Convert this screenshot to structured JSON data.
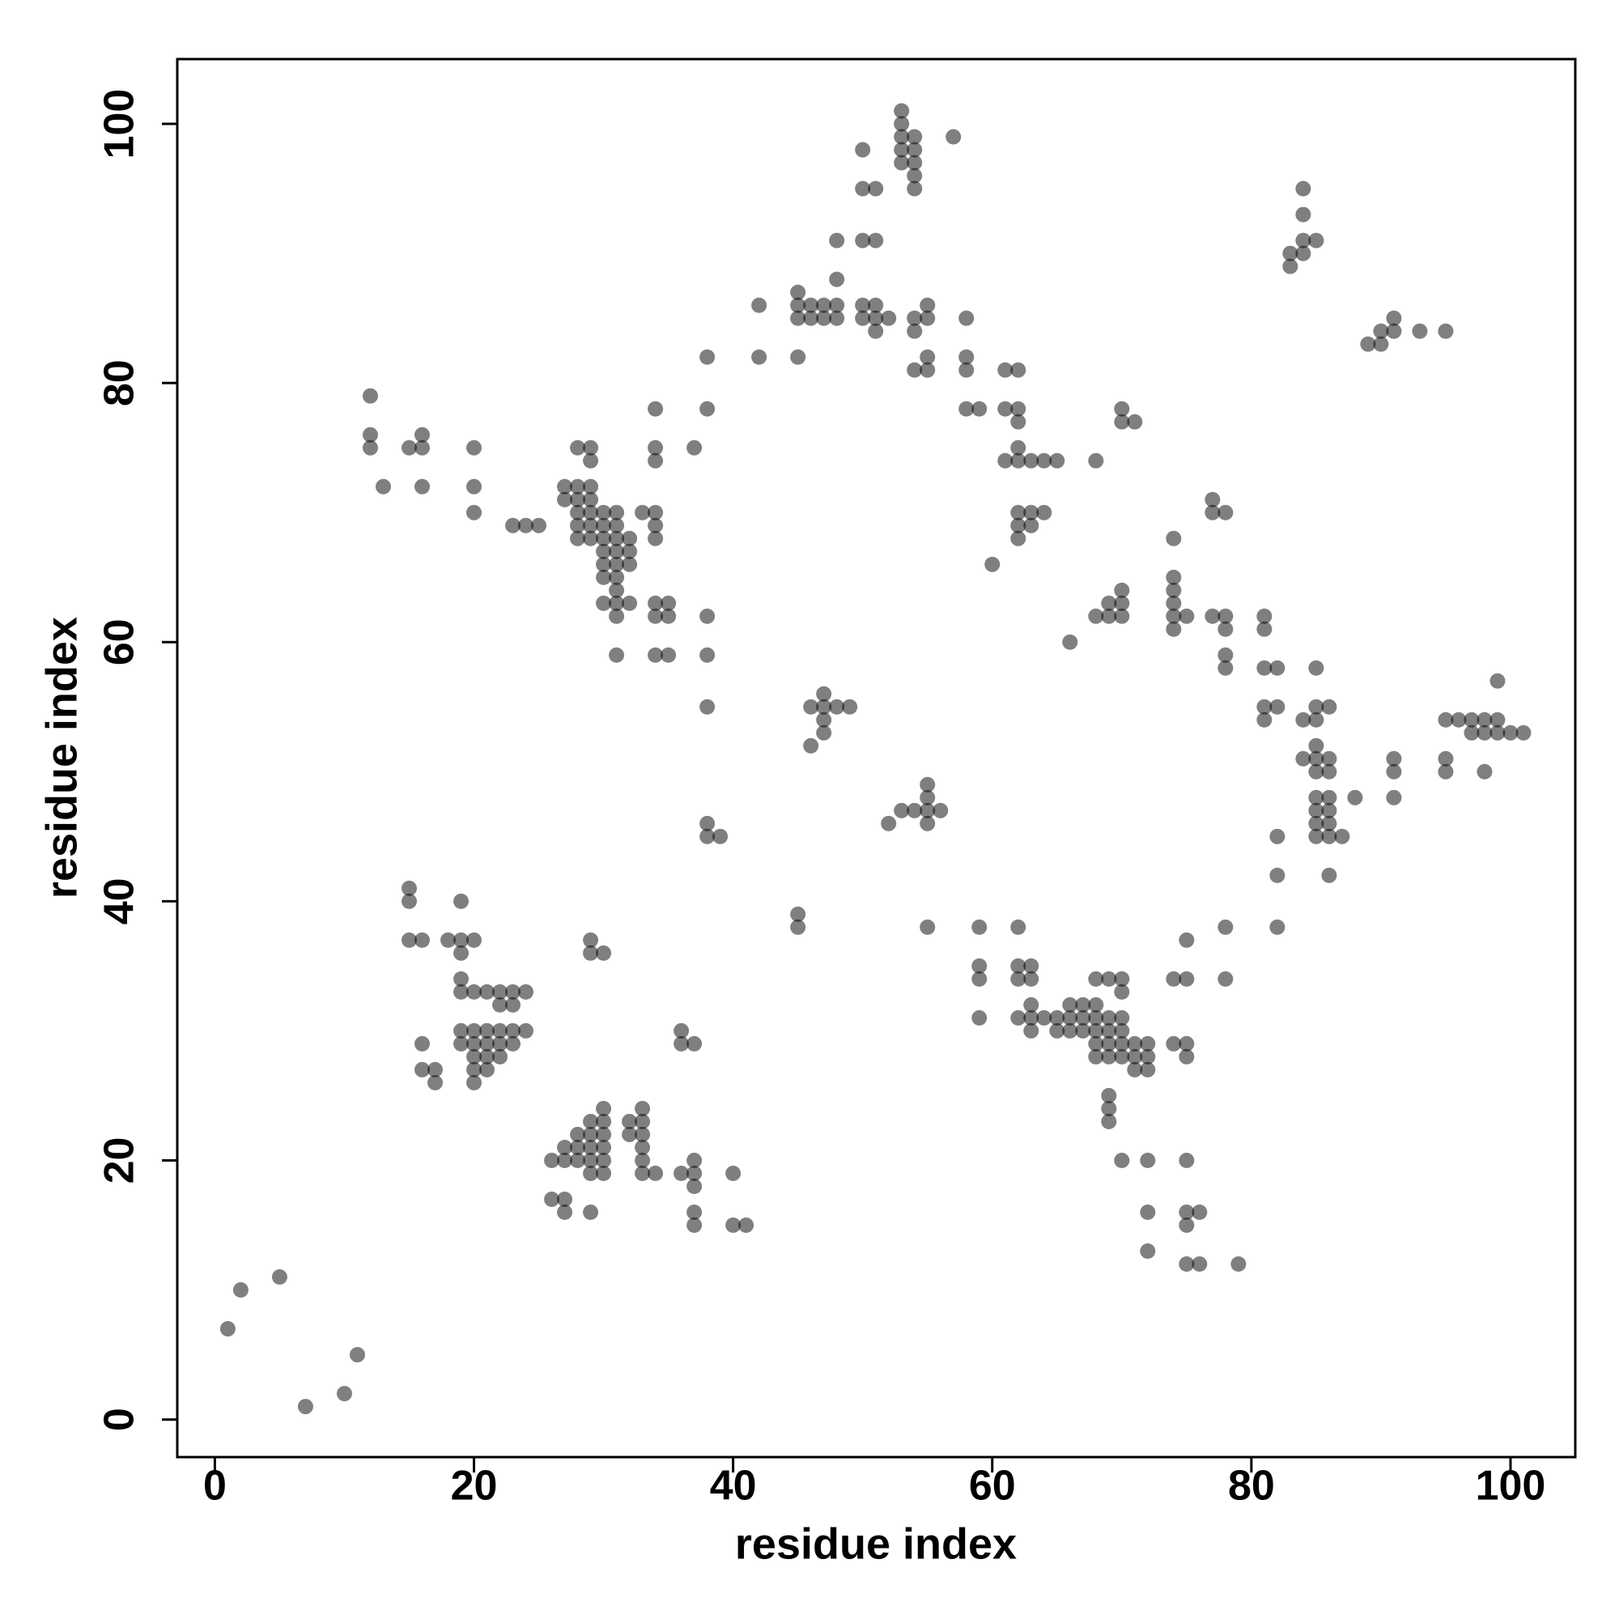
{
  "chart_data": {
    "type": "scatter",
    "xlabel": "residue index",
    "ylabel": "residue index",
    "xlim": [
      -2.9,
      105
    ],
    "ylim": [
      -2.9,
      105
    ],
    "xticks": [
      0,
      20,
      40,
      60,
      80,
      100
    ],
    "yticks": [
      0,
      20,
      40,
      60,
      80,
      100
    ],
    "color": "rgba(0,0,0,0.5)",
    "x": [
      1,
      2,
      5,
      7,
      10,
      11,
      12,
      12,
      12,
      13,
      15,
      16,
      16,
      16,
      20,
      20,
      20,
      23,
      24,
      25,
      27,
      27,
      28,
      28,
      28,
      28,
      28,
      28,
      29,
      29,
      29,
      29,
      29,
      29,
      29,
      30,
      30,
      30,
      30,
      30,
      30,
      30,
      31,
      31,
      31,
      31,
      31,
      31,
      31,
      31,
      31,
      31,
      32,
      32,
      32,
      32,
      33,
      34,
      34,
      34,
      34,
      34,
      34,
      34,
      34,
      34,
      35,
      35,
      35,
      37,
      38,
      38,
      38,
      38,
      38,
      38,
      38,
      39,
      15,
      15,
      15,
      16,
      16,
      16,
      17,
      17,
      18,
      19,
      19,
      19,
      19,
      19,
      19,
      19,
      20,
      20,
      20,
      20,
      20,
      20,
      20,
      21,
      21,
      21,
      21,
      21,
      22,
      22,
      22,
      22,
      22,
      23,
      23,
      23,
      23,
      24,
      24,
      26,
      26,
      27,
      27,
      27,
      27,
      28,
      28,
      28,
      29,
      29,
      29,
      29,
      29,
      29,
      29,
      29,
      30,
      30,
      30,
      30,
      30,
      30,
      30,
      32,
      32,
      33,
      33,
      33,
      33,
      33,
      33,
      34,
      36,
      36,
      36,
      37,
      37,
      37,
      37,
      37,
      37,
      40,
      40,
      41,
      42,
      42,
      45,
      45,
      45,
      45,
      46,
      46,
      47,
      47,
      48,
      48,
      48,
      48,
      50,
      50,
      50,
      50,
      50,
      51,
      51,
      51,
      51,
      51,
      52,
      53,
      53,
      53,
      53,
      53,
      54,
      54,
      54,
      54,
      54,
      54,
      54,
      54,
      55,
      55,
      55,
      55,
      57,
      58,
      58,
      58,
      58,
      59,
      60,
      61,
      61,
      61,
      62,
      62,
      62,
      62,
      62,
      62,
      62,
      62,
      63,
      63,
      63,
      64,
      64,
      65,
      68,
      70,
      70,
      71,
      45,
      45,
      46,
      46,
      47,
      47,
      47,
      47,
      48,
      49,
      52,
      53,
      54,
      55,
      55,
      55,
      55,
      55,
      56,
      66,
      68,
      69,
      69,
      70,
      70,
      70,
      74,
      74,
      74,
      74,
      74,
      74,
      75,
      77,
      77,
      77,
      78,
      78,
      78,
      78,
      78,
      81,
      81,
      81,
      81,
      81,
      82,
      82,
      82,
      82,
      82,
      84,
      84,
      85,
      85,
      85,
      85,
      85,
      85,
      85,
      85,
      85,
      85,
      86,
      86,
      86,
      86,
      86,
      86,
      86,
      86,
      87,
      88,
      91,
      91,
      91,
      95,
      95,
      95,
      96,
      97,
      97,
      98,
      98,
      98,
      99,
      99,
      99,
      100,
      101,
      83,
      83,
      84,
      84,
      84,
      84,
      85,
      89,
      90,
      90,
      91,
      91,
      93,
      95,
      59,
      59,
      59,
      59,
      62,
      62,
      62,
      62,
      63,
      63,
      63,
      63,
      63,
      64,
      65,
      65,
      66,
      66,
      66,
      67,
      67,
      67,
      68,
      68,
      68,
      68,
      68,
      68,
      69,
      69,
      69,
      69,
      69,
      69,
      69,
      69,
      70,
      70,
      70,
      70,
      70,
      70,
      70,
      71,
      71,
      71,
      72,
      72,
      72,
      72,
      72,
      72,
      74,
      74,
      75,
      75,
      75,
      75,
      75,
      75,
      75,
      75,
      76,
      76,
      78,
      78,
      79
    ],
    "values": [
      7,
      10,
      11,
      1,
      2,
      5,
      79,
      76,
      75,
      72,
      75,
      76,
      75,
      72,
      75,
      72,
      70,
      69,
      69,
      69,
      72,
      71,
      75,
      72,
      71,
      70,
      69,
      68,
      75,
      74,
      72,
      71,
      70,
      69,
      68,
      70,
      69,
      68,
      67,
      66,
      65,
      63,
      70,
      69,
      68,
      67,
      66,
      65,
      64,
      63,
      62,
      59,
      68,
      67,
      66,
      63,
      70,
      78,
      75,
      74,
      70,
      69,
      68,
      63,
      62,
      59,
      63,
      62,
      59,
      75,
      82,
      78,
      62,
      59,
      55,
      46,
      45,
      45,
      41,
      40,
      37,
      37,
      29,
      27,
      27,
      26,
      37,
      40,
      37,
      36,
      34,
      33,
      30,
      29,
      37,
      33,
      30,
      29,
      28,
      27,
      26,
      33,
      30,
      29,
      28,
      27,
      33,
      32,
      30,
      29,
      28,
      33,
      32,
      30,
      29,
      33,
      30,
      20,
      17,
      21,
      20,
      17,
      16,
      22,
      21,
      20,
      37,
      36,
      23,
      22,
      21,
      20,
      19,
      16,
      36,
      24,
      23,
      22,
      21,
      20,
      19,
      23,
      22,
      24,
      23,
      22,
      21,
      20,
      19,
      19,
      30,
      29,
      19,
      29,
      20,
      19,
      18,
      16,
      15,
      19,
      15,
      15,
      86,
      82,
      87,
      86,
      85,
      82,
      86,
      85,
      86,
      85,
      91,
      88,
      86,
      85,
      98,
      95,
      91,
      86,
      85,
      95,
      91,
      86,
      85,
      84,
      85,
      101,
      100,
      99,
      98,
      97,
      99,
      98,
      97,
      96,
      95,
      85,
      84,
      81,
      86,
      85,
      82,
      81,
      99,
      85,
      82,
      81,
      78,
      78,
      66,
      81,
      78,
      74,
      81,
      78,
      77,
      75,
      74,
      70,
      69,
      68,
      74,
      70,
      69,
      74,
      70,
      74,
      74,
      78,
      77,
      77,
      39,
      38,
      55,
      52,
      56,
      55,
      54,
      53,
      55,
      55,
      46,
      47,
      47,
      49,
      48,
      47,
      46,
      38,
      47,
      60,
      62,
      63,
      62,
      64,
      63,
      62,
      68,
      65,
      64,
      63,
      62,
      61,
      62,
      71,
      70,
      62,
      70,
      62,
      61,
      59,
      58,
      62,
      61,
      58,
      55,
      54,
      58,
      55,
      45,
      42,
      38,
      54,
      51,
      58,
      55,
      54,
      52,
      51,
      50,
      48,
      47,
      46,
      45,
      55,
      51,
      50,
      48,
      47,
      46,
      45,
      42,
      45,
      48,
      51,
      50,
      48,
      54,
      51,
      50,
      54,
      54,
      53,
      54,
      53,
      50,
      57,
      54,
      53,
      53,
      53,
      90,
      89,
      95,
      93,
      91,
      90,
      91,
      83,
      84,
      83,
      85,
      84,
      84,
      84,
      38,
      35,
      34,
      31,
      38,
      35,
      34,
      31,
      35,
      34,
      32,
      31,
      30,
      31,
      31,
      30,
      32,
      31,
      30,
      32,
      31,
      30,
      34,
      32,
      31,
      30,
      29,
      28,
      34,
      31,
      30,
      29,
      28,
      25,
      24,
      23,
      34,
      33,
      31,
      30,
      29,
      28,
      20,
      29,
      28,
      27,
      29,
      28,
      27,
      20,
      16,
      13,
      34,
      29,
      37,
      34,
      29,
      28,
      20,
      16,
      15,
      12,
      16,
      12,
      38,
      34,
      12
    ]
  }
}
